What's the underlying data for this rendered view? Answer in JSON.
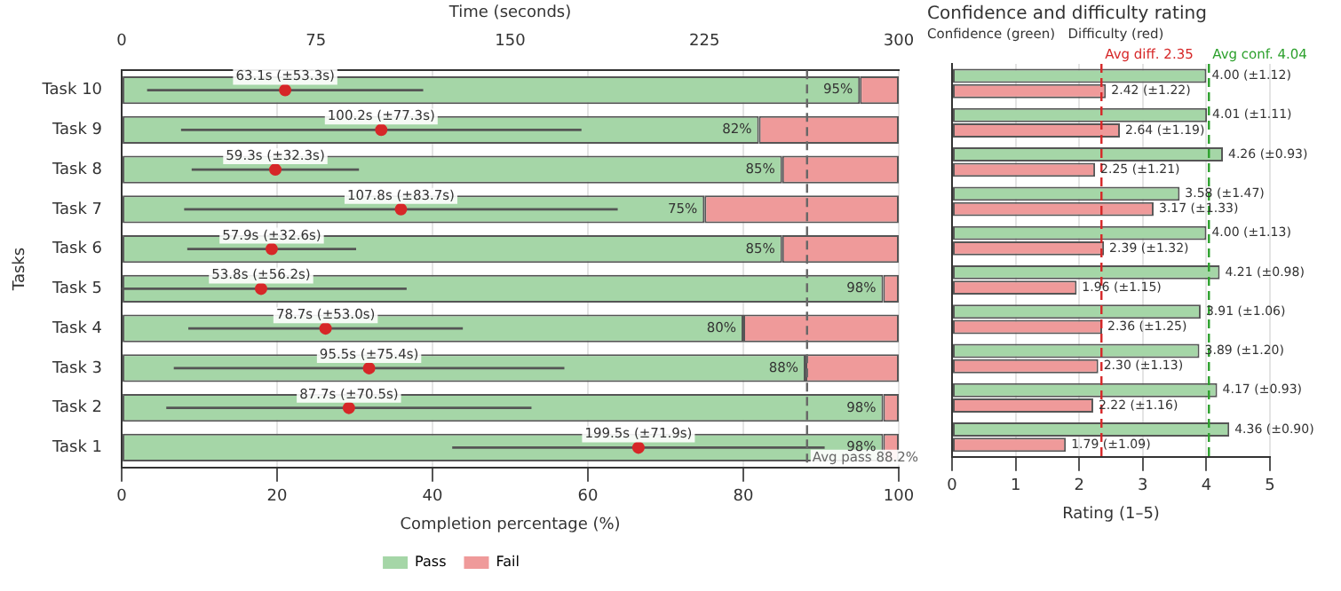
{
  "chart_data": [
    {
      "type": "bar",
      "orientation": "horizontal",
      "stacked": true,
      "xlabel": "Completion percentage (%)",
      "ylabel": "Tasks",
      "x2label": "Time (seconds)",
      "categories": [
        "Task 10",
        "Task 9",
        "Task 8",
        "Task 7",
        "Task 6",
        "Task 5",
        "Task 4",
        "Task 3",
        "Task 2",
        "Task 1"
      ],
      "xlim": [
        0,
        100
      ],
      "xticks": [
        0,
        20,
        40,
        60,
        80,
        100
      ],
      "x2lim": [
        0,
        300
      ],
      "x2ticks": [
        0,
        75,
        150,
        225,
        300
      ],
      "grid": "x",
      "legend": "bottom",
      "series": [
        {
          "name": "Pass",
          "color": "#a5d6a7",
          "values": [
            95,
            82,
            85,
            75,
            85,
            98,
            80,
            88,
            98,
            98
          ],
          "value_labels": [
            "95%",
            "82%",
            "85%",
            "75%",
            "85%",
            "98%",
            "80%",
            "88%",
            "98%",
            "98%"
          ]
        },
        {
          "name": "Fail",
          "color": "#ef9a9a",
          "values": [
            5,
            18,
            15,
            25,
            15,
            2,
            20,
            12,
            2,
            2
          ]
        },
        {
          "type": "scatter",
          "axis": "x2",
          "marker": "circle",
          "color": "#d62728",
          "values": [
            63.1,
            100.2,
            59.3,
            107.8,
            57.9,
            53.8,
            78.7,
            95.5,
            87.7,
            199.5
          ],
          "errors": [
            53.3,
            77.3,
            32.3,
            83.7,
            32.6,
            [
              0,
              110.0
            ],
            53.0,
            75.4,
            70.5,
            71.9
          ],
          "value_labels": [
            "63.1s (±53.3s)",
            "100.2s (±77.3s)",
            "59.3s (±32.3s)",
            "107.8s (±83.7s)",
            "57.9s (±32.6s)",
            "53.8s (±56.2s)",
            "78.7s (±53.0s)",
            "95.5s (±75.4s)",
            "87.7s (±70.5s)",
            "199.5s (±71.9s)"
          ]
        }
      ],
      "ref_lines": [
        {
          "axis": "x",
          "value": 88.2,
          "label": "Avg pass 88.2%",
          "color": "#666666",
          "line_style": "dashed"
        }
      ]
    },
    {
      "type": "bar",
      "orientation": "horizontal",
      "title": "Confidence and difficulty rating",
      "subtitle": "Confidence (green)   Difficulty (red)",
      "xlabel": "Rating (1–5)",
      "categories": [
        null,
        null,
        null,
        null,
        null,
        null,
        null,
        null,
        null,
        null
      ],
      "xlim": [
        0,
        5
      ],
      "xticks": [
        0,
        1,
        2,
        3,
        4,
        5
      ],
      "grid": "x",
      "series": [
        {
          "color": "#a5d6a7",
          "values": [
            4.0,
            4.01,
            4.26,
            3.58,
            4.0,
            4.21,
            3.91,
            3.89,
            4.17,
            4.36
          ],
          "value_labels": [
            "4.00 (±1.12)",
            "4.01 (±1.11)",
            "4.26 (±0.93)",
            "3.58 (±1.47)",
            "4.00 (±1.13)",
            "4.21 (±0.98)",
            "3.91 (±1.06)",
            "3.89 (±1.20)",
            "4.17 (±0.93)",
            "4.36 (±0.90)"
          ]
        },
        {
          "color": "#ef9a9a",
          "values": [
            2.42,
            2.64,
            2.25,
            3.17,
            2.39,
            1.96,
            2.36,
            2.3,
            2.22,
            1.79
          ],
          "value_labels": [
            "2.42 (±1.22)",
            "2.64 (±1.19)",
            "2.25 (±1.21)",
            "3.17 (±1.33)",
            "2.39 (±1.32)",
            "1.96 (±1.15)",
            "2.36 (±1.25)",
            "2.30 (±1.13)",
            "2.22 (±1.16)",
            "1.79 (±1.09)"
          ]
        }
      ],
      "ref_lines": [
        {
          "axis": "x",
          "value": 4.04,
          "label": "Avg conf. 4.04",
          "color": "#2ca02c",
          "line_style": "dashed"
        },
        {
          "axis": "x",
          "value": 2.35,
          "label": "Avg diff. 2.35",
          "color": "#d62728",
          "line_style": "dashed"
        }
      ]
    }
  ]
}
